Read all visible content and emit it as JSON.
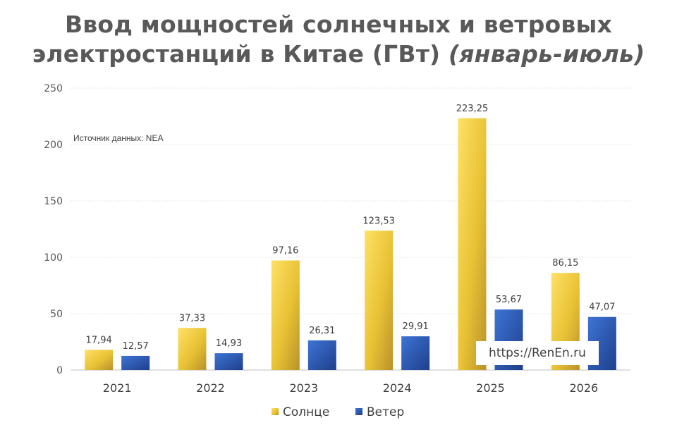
{
  "title": {
    "line1": "Ввод мощностей солнечных и ветровых",
    "line2_main": "электростанций в Китае (ГВт) ",
    "line2_italic": "(январь-июль)"
  },
  "source_note": "Источник данных: NEA",
  "watermark": "https://RenEn.ru",
  "chart_data": {
    "type": "bar",
    "categories": [
      "2021",
      "2022",
      "2023",
      "2024",
      "2025",
      "2026"
    ],
    "series": [
      {
        "name": "Солнце",
        "values": [
          17.94,
          37.33,
          97.16,
          123.53,
          223.25,
          86.15
        ],
        "labels": [
          "17,94",
          "37,33",
          "97,16",
          "123,53",
          "223,25",
          "86,15"
        ],
        "color": "#f0c929"
      },
      {
        "name": "Ветер",
        "values": [
          12.57,
          14.93,
          26.31,
          29.91,
          53.67,
          47.07
        ],
        "labels": [
          "12,57",
          "14,93",
          "26,31",
          "29,91",
          "53,67",
          "47,07"
        ],
        "color": "#2e5fb8"
      }
    ],
    "ylim": [
      0,
      250
    ],
    "yticks": [
      0,
      50,
      100,
      150,
      200,
      250
    ],
    "grid": true,
    "legend_position": "bottom"
  }
}
